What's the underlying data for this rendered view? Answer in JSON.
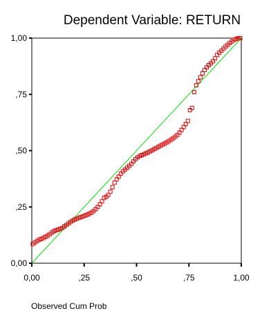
{
  "chart_data": {
    "type": "scatter",
    "title": "Dependent Variable: RETURN",
    "xlabel": "Observed Cum Prob",
    "ylabel": "",
    "xlim": [
      0,
      1
    ],
    "ylim": [
      0,
      1
    ],
    "x_ticks": [
      0,
      0.25,
      0.5,
      0.75,
      1
    ],
    "x_tick_labels": [
      "0,00",
      ",25",
      ",50",
      ",75",
      "1,00"
    ],
    "y_ticks": [
      0,
      0.25,
      0.5,
      0.75,
      1
    ],
    "y_tick_labels": [
      "0,00",
      ",25",
      ",50",
      ",75",
      "1,00"
    ],
    "grid": false,
    "reference_line": {
      "from": [
        0,
        0
      ],
      "to": [
        1,
        1
      ],
      "color": "#00e000"
    },
    "marker_color": "#e00000",
    "points": [
      [
        0.005,
        0.085
      ],
      [
        0.015,
        0.092
      ],
      [
        0.025,
        0.098
      ],
      [
        0.035,
        0.104
      ],
      [
        0.045,
        0.108
      ],
      [
        0.055,
        0.112
      ],
      [
        0.065,
        0.117
      ],
      [
        0.075,
        0.122
      ],
      [
        0.085,
        0.128
      ],
      [
        0.095,
        0.136
      ],
      [
        0.105,
        0.142
      ],
      [
        0.115,
        0.146
      ],
      [
        0.125,
        0.149
      ],
      [
        0.135,
        0.152
      ],
      [
        0.145,
        0.156
      ],
      [
        0.155,
        0.163
      ],
      [
        0.165,
        0.17
      ],
      [
        0.175,
        0.177
      ],
      [
        0.185,
        0.183
      ],
      [
        0.195,
        0.189
      ],
      [
        0.205,
        0.194
      ],
      [
        0.215,
        0.198
      ],
      [
        0.225,
        0.202
      ],
      [
        0.235,
        0.205
      ],
      [
        0.245,
        0.208
      ],
      [
        0.255,
        0.212
      ],
      [
        0.265,
        0.216
      ],
      [
        0.275,
        0.22
      ],
      [
        0.285,
        0.225
      ],
      [
        0.295,
        0.232
      ],
      [
        0.305,
        0.24
      ],
      [
        0.315,
        0.25
      ],
      [
        0.325,
        0.262
      ],
      [
        0.335,
        0.275
      ],
      [
        0.345,
        0.29
      ],
      [
        0.355,
        0.295
      ],
      [
        0.365,
        0.303
      ],
      [
        0.375,
        0.318
      ],
      [
        0.385,
        0.338
      ],
      [
        0.395,
        0.358
      ],
      [
        0.405,
        0.373
      ],
      [
        0.415,
        0.385
      ],
      [
        0.425,
        0.398
      ],
      [
        0.435,
        0.408
      ],
      [
        0.445,
        0.416
      ],
      [
        0.455,
        0.424
      ],
      [
        0.465,
        0.432
      ],
      [
        0.475,
        0.441
      ],
      [
        0.485,
        0.452
      ],
      [
        0.495,
        0.462
      ],
      [
        0.505,
        0.47
      ],
      [
        0.515,
        0.476
      ],
      [
        0.525,
        0.48
      ],
      [
        0.535,
        0.484
      ],
      [
        0.545,
        0.488
      ],
      [
        0.555,
        0.492
      ],
      [
        0.565,
        0.497
      ],
      [
        0.575,
        0.502
      ],
      [
        0.585,
        0.507
      ],
      [
        0.595,
        0.512
      ],
      [
        0.605,
        0.517
      ],
      [
        0.615,
        0.522
      ],
      [
        0.625,
        0.527
      ],
      [
        0.635,
        0.532
      ],
      [
        0.645,
        0.537
      ],
      [
        0.655,
        0.543
      ],
      [
        0.665,
        0.549
      ],
      [
        0.675,
        0.555
      ],
      [
        0.685,
        0.562
      ],
      [
        0.695,
        0.57
      ],
      [
        0.705,
        0.58
      ],
      [
        0.715,
        0.592
      ],
      [
        0.725,
        0.605
      ],
      [
        0.735,
        0.618
      ],
      [
        0.745,
        0.632
      ],
      [
        0.755,
        0.68
      ],
      [
        0.765,
        0.69
      ],
      [
        0.775,
        0.76
      ],
      [
        0.785,
        0.79
      ],
      [
        0.795,
        0.808
      ],
      [
        0.805,
        0.826
      ],
      [
        0.815,
        0.843
      ],
      [
        0.825,
        0.858
      ],
      [
        0.835,
        0.87
      ],
      [
        0.845,
        0.88
      ],
      [
        0.855,
        0.888
      ],
      [
        0.865,
        0.897
      ],
      [
        0.875,
        0.91
      ],
      [
        0.885,
        0.925
      ],
      [
        0.895,
        0.935
      ],
      [
        0.905,
        0.944
      ],
      [
        0.915,
        0.953
      ],
      [
        0.925,
        0.962
      ],
      [
        0.935,
        0.97
      ],
      [
        0.945,
        0.978
      ],
      [
        0.955,
        0.985
      ],
      [
        0.965,
        0.992
      ],
      [
        0.975,
        0.996
      ],
      [
        0.985,
        0.999
      ],
      [
        0.995,
        1.0
      ]
    ]
  }
}
